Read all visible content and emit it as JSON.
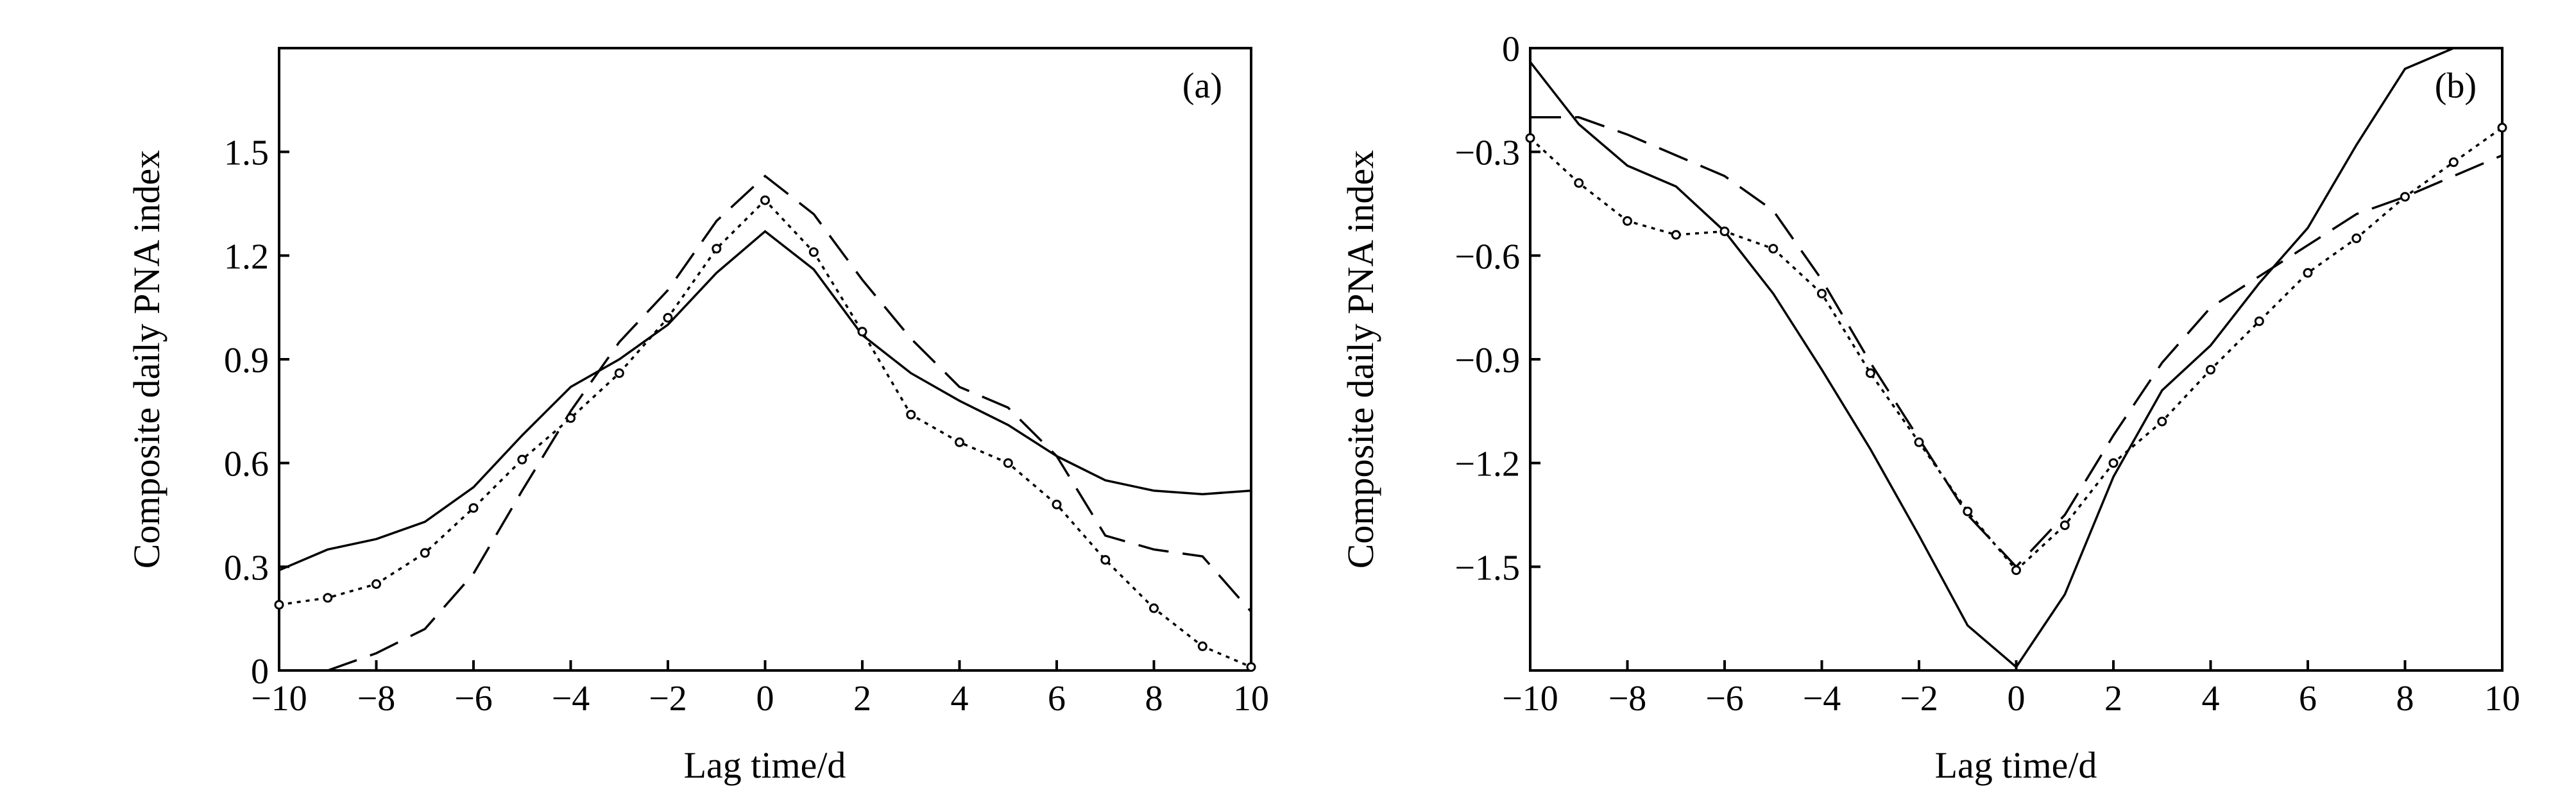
{
  "chart_data": [
    {
      "type": "line",
      "panel_label": "(a)",
      "xlabel": "Lag time/d",
      "ylabel": "Composite daily PNA index",
      "xlim": [
        -10,
        10
      ],
      "ylim": [
        0,
        1.8
      ],
      "xticks": [
        -10,
        -8,
        -6,
        -4,
        -2,
        0,
        2,
        4,
        6,
        8,
        10
      ],
      "xtick_labels": [
        "−10",
        "−8",
        "−6",
        "−4",
        "−2",
        "0",
        "2",
        "4",
        "6",
        "8",
        "10"
      ],
      "yticks": [
        0,
        0.3,
        0.6,
        0.9,
        1.2,
        1.5
      ],
      "ytick_labels": [
        "0",
        "0.3",
        "0.6",
        "0.9",
        "1.2",
        "1.5"
      ],
      "grid": false,
      "series": [
        {
          "style": "solid",
          "x": [
            -10,
            -9,
            -8,
            -7,
            -6,
            -5,
            -4,
            -3,
            -2,
            -1,
            0,
            1,
            2,
            3,
            4,
            5,
            6,
            7,
            8,
            9,
            10
          ],
          "y": [
            0.29,
            0.35,
            0.38,
            0.43,
            0.53,
            0.68,
            0.82,
            0.9,
            1.0,
            1.15,
            1.27,
            1.16,
            0.97,
            0.86,
            0.78,
            0.71,
            0.62,
            0.55,
            0.52,
            0.51,
            0.52
          ]
        },
        {
          "style": "dashed",
          "x": [
            -9,
            -8,
            -7,
            -6,
            -5,
            -4,
            -3,
            -2,
            -1,
            0,
            1,
            2,
            3,
            4,
            5,
            6,
            7,
            8,
            9,
            10
          ],
          "y": [
            0.0,
            0.05,
            0.12,
            0.28,
            0.52,
            0.75,
            0.95,
            1.1,
            1.3,
            1.43,
            1.32,
            1.13,
            0.96,
            0.82,
            0.76,
            0.62,
            0.39,
            0.35,
            0.33,
            0.17
          ]
        },
        {
          "style": "dotted-marker",
          "x": [
            -10,
            -9,
            -8,
            -7,
            -6,
            -5,
            -4,
            -3,
            -2,
            -1,
            0,
            1,
            2,
            3,
            4,
            5,
            6,
            7,
            8,
            9,
            10
          ],
          "y": [
            0.19,
            0.21,
            0.25,
            0.34,
            0.47,
            0.61,
            0.73,
            0.86,
            1.02,
            1.22,
            1.36,
            1.21,
            0.98,
            0.74,
            0.66,
            0.6,
            0.48,
            0.32,
            0.18,
            0.07,
            0.01
          ]
        }
      ]
    },
    {
      "type": "line",
      "panel_label": "(b)",
      "xlabel": "Lag time/d",
      "ylabel": "Composite daily PNA index",
      "xlim": [
        -10,
        10
      ],
      "ylim": [
        -1.8,
        0
      ],
      "xticks": [
        -10,
        -8,
        -6,
        -4,
        -2,
        0,
        2,
        4,
        6,
        8,
        10
      ],
      "xtick_labels": [
        "−10",
        "−8",
        "−6",
        "−4",
        "−2",
        "0",
        "2",
        "4",
        "6",
        "8",
        "10"
      ],
      "yticks": [
        0,
        -0.3,
        -0.6,
        -0.9,
        -1.2,
        -1.5
      ],
      "ytick_labels": [
        "0",
        "−0.3",
        "−0.6",
        "−0.9",
        "−1.2",
        "−1.5"
      ],
      "grid": false,
      "series": [
        {
          "style": "solid",
          "x": [
            -10,
            -9,
            -8,
            -7,
            -6,
            -5,
            -4,
            -3,
            -2,
            -1,
            0,
            1,
            2,
            3,
            4,
            5,
            6,
            7,
            8,
            9
          ],
          "y": [
            -0.04,
            -0.22,
            -0.34,
            -0.4,
            -0.53,
            -0.71,
            -0.93,
            -1.16,
            -1.41,
            -1.67,
            -1.79,
            -1.58,
            -1.24,
            -0.99,
            -0.86,
            -0.68,
            -0.52,
            -0.28,
            -0.06,
            0.0
          ]
        },
        {
          "style": "dashed",
          "x": [
            -10,
            -9,
            -8,
            -7,
            -6,
            -5,
            -4,
            -3,
            -2,
            -1,
            0,
            1,
            2,
            3,
            4,
            5,
            6,
            7,
            8,
            9,
            10
          ],
          "y": [
            -0.2,
            -0.2,
            -0.25,
            -0.31,
            -0.37,
            -0.47,
            -0.67,
            -0.91,
            -1.13,
            -1.35,
            -1.5,
            -1.35,
            -1.12,
            -0.91,
            -0.75,
            -0.66,
            -0.57,
            -0.48,
            -0.43,
            -0.37,
            -0.31
          ]
        },
        {
          "style": "dotted-marker",
          "x": [
            -10,
            -9,
            -8,
            -7,
            -6,
            -5,
            -4,
            -3,
            -2,
            -1,
            0,
            1,
            2,
            3,
            4,
            5,
            6,
            7,
            8,
            9,
            10
          ],
          "y": [
            -0.26,
            -0.39,
            -0.5,
            -0.54,
            -0.53,
            -0.58,
            -0.71,
            -0.94,
            -1.14,
            -1.34,
            -1.51,
            -1.38,
            -1.2,
            -1.08,
            -0.93,
            -0.79,
            -0.65,
            -0.55,
            -0.43,
            -0.33,
            -0.23
          ]
        }
      ]
    }
  ]
}
